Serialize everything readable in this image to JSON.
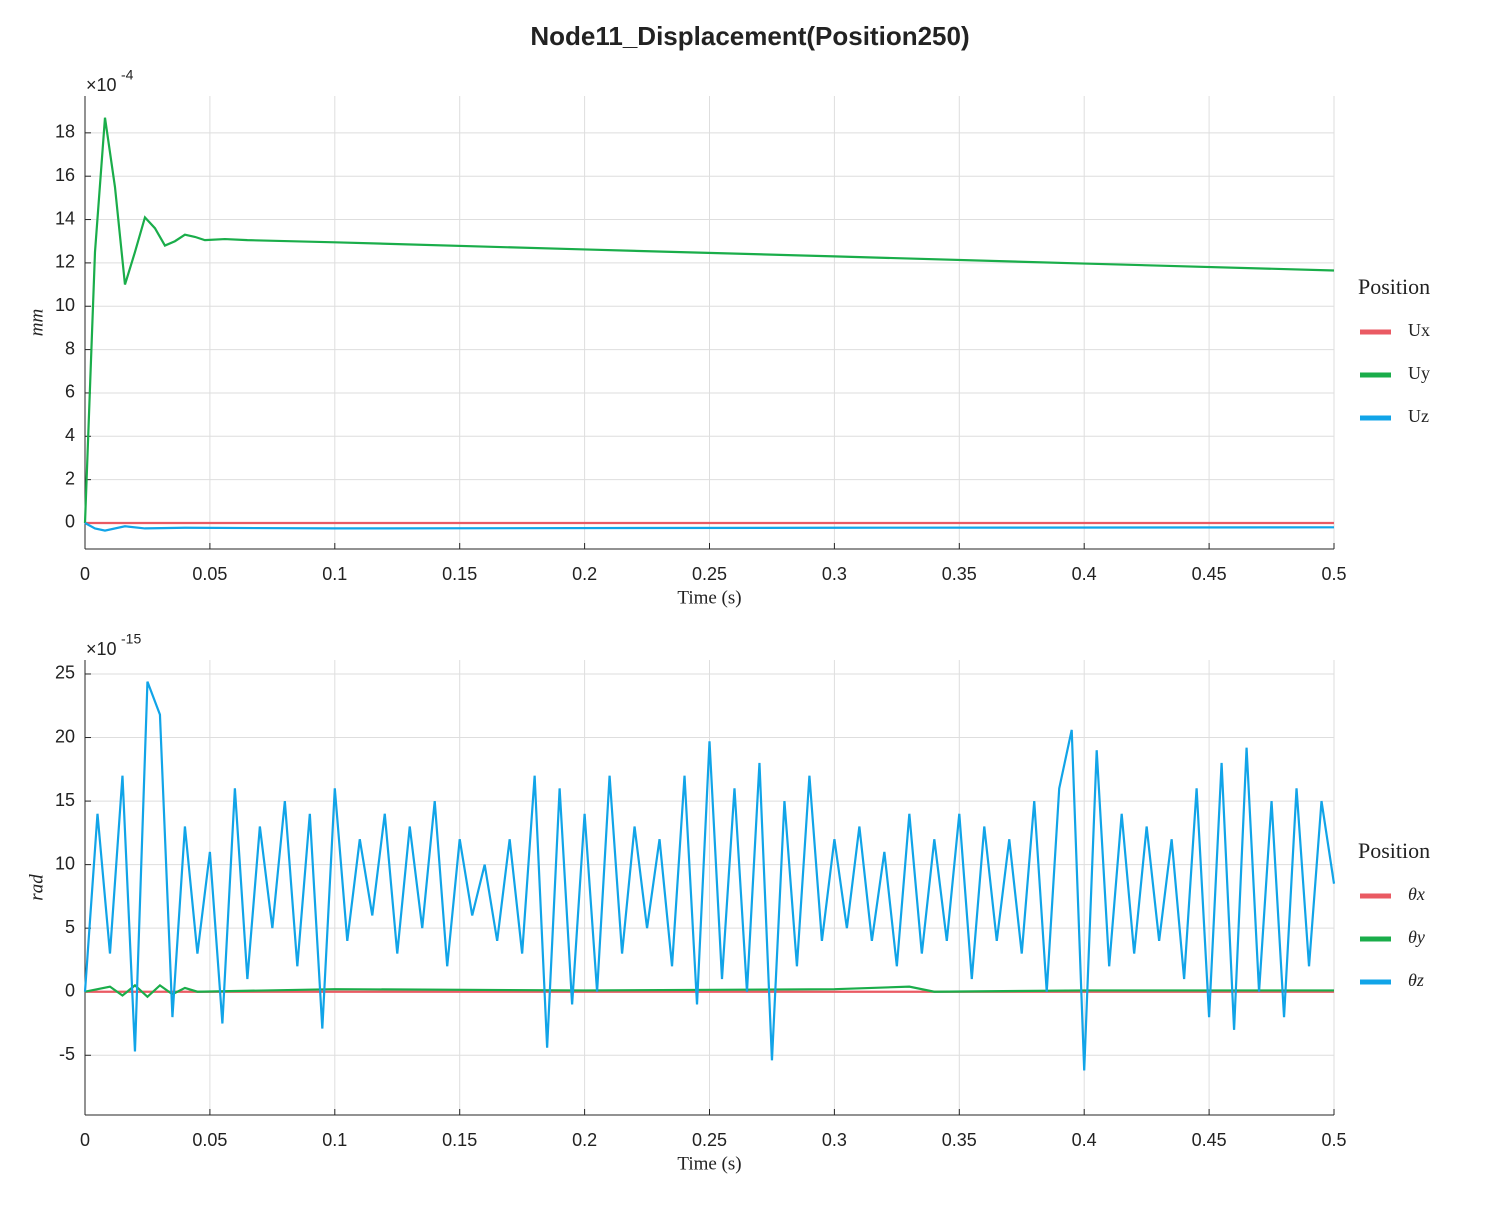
{
  "title": "Node11_Displacement(Position250)",
  "chart_data": [
    {
      "type": "line",
      "y_multiplier_base": "×10",
      "y_exponent": "-4",
      "xlabel": "Time (s)",
      "ylabel": "mm",
      "xlim": [
        0,
        0.5
      ],
      "ylim": [
        -1.2,
        19.7
      ],
      "xticks": [
        0,
        0.05,
        0.1,
        0.15,
        0.2,
        0.25,
        0.3,
        0.35,
        0.4,
        0.45,
        0.5
      ],
      "yticks": [
        0,
        2,
        4,
        6,
        8,
        10,
        12,
        14,
        16,
        18
      ],
      "grid": true,
      "legend_title": "Position",
      "legend": "outside-right",
      "series": [
        {
          "name": "Ux",
          "color": "#ea5a63",
          "x": [
            0,
            0.5
          ],
          "values": [
            0,
            0
          ]
        },
        {
          "name": "Uy",
          "color": "#1aad4a",
          "x": [
            0,
            0.004,
            0.008,
            0.012,
            0.016,
            0.02,
            0.024,
            0.028,
            0.032,
            0.036,
            0.04,
            0.044,
            0.048,
            0.056,
            0.065,
            0.1,
            0.2,
            0.3,
            0.4,
            0.5
          ],
          "values": [
            0,
            12.5,
            18.7,
            15.5,
            11.0,
            12.5,
            14.1,
            13.6,
            12.8,
            13.0,
            13.3,
            13.2,
            13.05,
            13.1,
            13.05,
            12.95,
            12.62,
            12.3,
            11.97,
            11.65
          ]
        },
        {
          "name": "Uz",
          "color": "#11a4e8",
          "x": [
            0,
            0.004,
            0.008,
            0.016,
            0.024,
            0.04,
            0.1,
            0.3,
            0.5
          ],
          "values": [
            0,
            -0.25,
            -0.35,
            -0.15,
            -0.25,
            -0.22,
            -0.25,
            -0.22,
            -0.2
          ]
        }
      ]
    },
    {
      "type": "line",
      "y_multiplier_base": "×10",
      "y_exponent": "-15",
      "xlabel": "Time (s)",
      "ylabel": "rad",
      "xlim": [
        0,
        0.5
      ],
      "ylim": [
        -9.7,
        26.1
      ],
      "xticks": [
        0,
        0.05,
        0.1,
        0.15,
        0.2,
        0.25,
        0.3,
        0.35,
        0.4,
        0.45,
        0.5
      ],
      "yticks": [
        -5,
        0,
        5,
        10,
        15,
        20,
        25
      ],
      "grid": true,
      "legend_title": "Position",
      "legend": "outside-right",
      "series": [
        {
          "name": "θx",
          "color": "#ea5a63",
          "x": [
            0,
            0.5
          ],
          "values": [
            0,
            0
          ]
        },
        {
          "name": "θy",
          "color": "#1aad4a",
          "x": [
            0,
            0.01,
            0.015,
            0.02,
            0.025,
            0.03,
            0.035,
            0.04,
            0.045,
            0.1,
            0.2,
            0.3,
            0.33,
            0.34,
            0.4,
            0.5
          ],
          "values": [
            0,
            0.4,
            -0.3,
            0.5,
            -0.4,
            0.5,
            -0.2,
            0.3,
            0,
            0.2,
            0.1,
            0.2,
            0.4,
            0,
            0.1,
            0.1
          ]
        },
        {
          "name": "θz",
          "color": "#11a4e8",
          "x": [
            0,
            0.005,
            0.01,
            0.015,
            0.02,
            0.025,
            0.03,
            0.035,
            0.04,
            0.045,
            0.05,
            0.055,
            0.06,
            0.065,
            0.07,
            0.075,
            0.08,
            0.085,
            0.09,
            0.095,
            0.1,
            0.105,
            0.11,
            0.115,
            0.12,
            0.125,
            0.13,
            0.135,
            0.14,
            0.145,
            0.15,
            0.155,
            0.16,
            0.165,
            0.17,
            0.175,
            0.18,
            0.185,
            0.19,
            0.195,
            0.2,
            0.205,
            0.21,
            0.215,
            0.22,
            0.225,
            0.23,
            0.235,
            0.24,
            0.245,
            0.25,
            0.255,
            0.26,
            0.265,
            0.27,
            0.275,
            0.28,
            0.285,
            0.29,
            0.295,
            0.3,
            0.305,
            0.31,
            0.315,
            0.32,
            0.325,
            0.33,
            0.335,
            0.34,
            0.345,
            0.35,
            0.355,
            0.36,
            0.365,
            0.37,
            0.375,
            0.38,
            0.385,
            0.39,
            0.395,
            0.4,
            0.405,
            0.41,
            0.415,
            0.42,
            0.425,
            0.43,
            0.435,
            0.44,
            0.445,
            0.45,
            0.455,
            0.46,
            0.465,
            0.47,
            0.475,
            0.48,
            0.485,
            0.49,
            0.495,
            0.5
          ],
          "values": [
            0,
            14,
            3,
            17,
            -4.7,
            24.4,
            21.8,
            -2,
            13,
            3,
            11,
            -2.5,
            16,
            1,
            13,
            5,
            15,
            2,
            14,
            -2.9,
            16,
            4,
            12,
            6,
            14,
            3,
            13,
            5,
            15,
            2,
            12,
            6,
            10,
            4,
            12,
            3,
            17,
            -4.4,
            16,
            -1,
            14,
            0,
            17,
            3,
            13,
            5,
            12,
            2,
            17,
            -1,
            19.7,
            1,
            16,
            0,
            18,
            -5.4,
            15,
            2,
            17,
            4,
            12,
            5,
            13,
            4,
            11,
            2,
            14,
            3,
            12,
            4,
            14,
            1,
            13,
            4,
            12,
            3,
            15,
            0,
            16,
            20.6,
            -6.2,
            19,
            2,
            14,
            3,
            13,
            4,
            12,
            1,
            16,
            -2,
            18,
            -3,
            19.2,
            0,
            15,
            -2,
            16,
            2,
            15,
            8.5
          ]
        }
      ]
    }
  ]
}
